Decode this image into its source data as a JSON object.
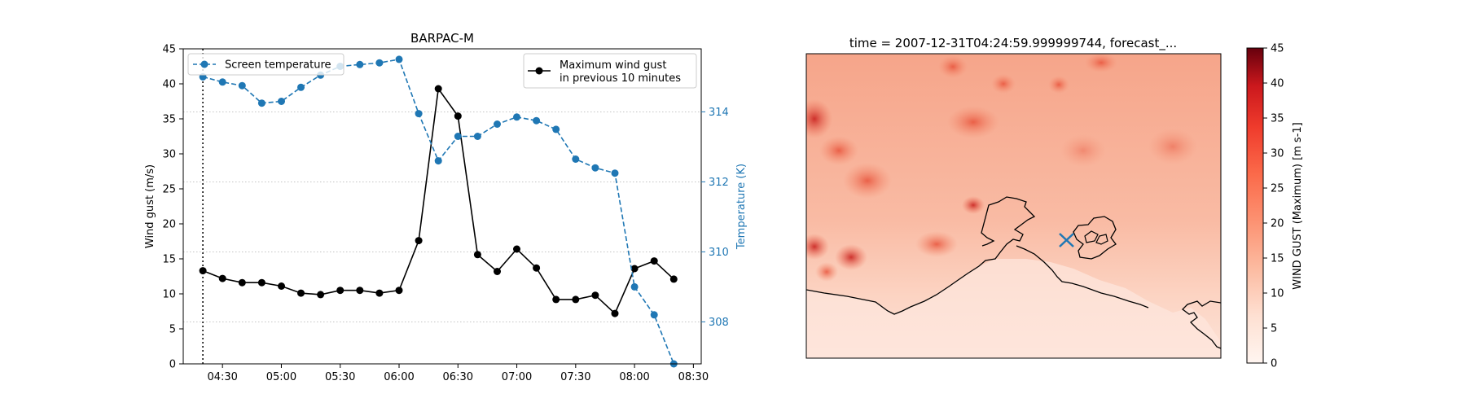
{
  "chart_data": [
    {
      "type": "line",
      "title": "BARPAC-M",
      "x": [
        "04:20",
        "04:30",
        "04:40",
        "04:50",
        "05:00",
        "05:10",
        "05:20",
        "05:30",
        "05:40",
        "05:50",
        "06:00",
        "06:10",
        "06:20",
        "06:30",
        "06:40",
        "06:50",
        "07:00",
        "07:10",
        "07:20",
        "07:30",
        "07:40",
        "07:50",
        "08:00",
        "08:10",
        "08:20"
      ],
      "xticks": [
        "04:30",
        "05:00",
        "05:30",
        "06:00",
        "06:30",
        "07:00",
        "07:30",
        "08:00",
        "08:30"
      ],
      "xlim": [
        "04:10",
        "08:34"
      ],
      "ylabel": "Wind gust (m/s)",
      "ylim": [
        0,
        45
      ],
      "yticks": [
        0,
        5,
        10,
        15,
        20,
        25,
        30,
        35,
        40,
        45
      ],
      "y2label": "Temperature (K)",
      "y2lim": [
        306.8,
        315.8
      ],
      "y2ticks": [
        308,
        310,
        312,
        314
      ],
      "vline_x": "04:20",
      "grid": "right-axis horizontal dotted",
      "series": [
        {
          "name": "Maximum wind gust\nin previous 10 minutes",
          "axis": "left",
          "color": "#000000",
          "style": "solid",
          "values": [
            13.3,
            12.2,
            11.6,
            11.6,
            11.1,
            10.1,
            9.9,
            10.5,
            10.5,
            10.1,
            10.5,
            17.6,
            39.3,
            35.4,
            15.6,
            13.2,
            16.4,
            13.7,
            9.2,
            9.2,
            9.8,
            7.2,
            13.6,
            14.7,
            12.1
          ]
        },
        {
          "name": "Screen temperature",
          "axis": "right",
          "color": "#1f77b4",
          "style": "dashed",
          "values": [
            315.0,
            314.85,
            314.75,
            314.25,
            314.3,
            314.7,
            315.05,
            315.3,
            315.35,
            315.4,
            315.5,
            313.95,
            312.6,
            313.3,
            313.3,
            313.65,
            313.85,
            313.75,
            313.5,
            312.65,
            312.4,
            312.25,
            309.0,
            308.2,
            306.8
          ]
        }
      ],
      "legend": "top-left (Screen temperature), top-right (Maximum wind gust)"
    },
    {
      "type": "heatmap",
      "title": "time = 2007-12-31T04:24:59.999999744, forecast_...",
      "colorbar_label": "WIND GUST (Maximum) [m s-1]",
      "colorbar_range": [
        0,
        45
      ],
      "colorbar_ticks": [
        0,
        5,
        10,
        15,
        20,
        25,
        30,
        35,
        40,
        45
      ],
      "colormap": "Reds",
      "marker": "x",
      "marker_color": "#1f77b4"
    }
  ],
  "colors": {
    "gust": "#000000",
    "temp": "#1f77b4",
    "grid": "#b0b0b0"
  }
}
